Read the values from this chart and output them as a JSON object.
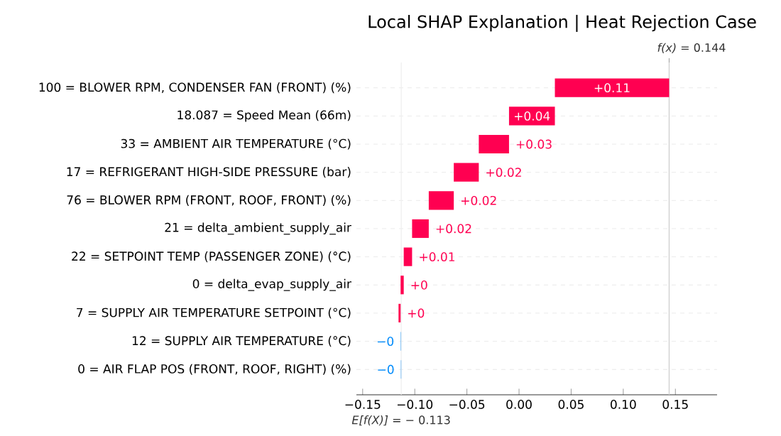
{
  "chart_data": {
    "type": "bar",
    "orientation": "horizontal",
    "title": "Local SHAP Explanation | Heat Rejection Case",
    "categories": [
      "100 = BLOWER RPM, CONDENSER FAN (FRONT) (%)",
      "18.087 = Speed Mean (66m)",
      "33 = AMBIENT AIR TEMPERATURE (°C)",
      "17 = REFRIGERANT HIGH-SIDE PRESSURE (bar)",
      "76 = BLOWER RPM (FRONT, ROOF, FRONT) (%)",
      "21 = delta_ambient_supply_air",
      "22 = SETPOINT TEMP (PASSENGER ZONE) (°C)",
      "0 = delta_evap_supply_air",
      "7 = SUPPLY AIR TEMPERATURE SETPOINT (°C)",
      "12 = SUPPLY AIR TEMPERATURE (°C)",
      "0 = AIR FLAP POS (FRONT, ROOF, RIGHT) (%)"
    ],
    "values": [
      0.1096,
      0.044,
      0.029,
      0.024,
      0.024,
      0.016,
      0.008,
      0.003,
      0.002,
      -0.0003,
      -0.0003
    ],
    "base": [
      0.0344,
      -0.0096,
      -0.0386,
      -0.0626,
      -0.0866,
      -0.1026,
      -0.1106,
      -0.1136,
      -0.1156,
      -0.1133,
      -0.113
    ],
    "value_labels": [
      "+0.11",
      "+0.04",
      "+0.03",
      "+0.02",
      "+0.02",
      "+0.02",
      "+0.01",
      "+0",
      "+0",
      "−0",
      "−0"
    ],
    "colors": [
      "#ff0051",
      "#ff0051",
      "#ff0051",
      "#ff0051",
      "#ff0051",
      "#ff0051",
      "#ff0051",
      "#ff0051",
      "#ff0051",
      "#008bfb",
      "#008bfb"
    ],
    "xlim": [
      -0.156,
      0.19
    ],
    "xticks": [
      {
        "value": -0.15,
        "label": "−0.15"
      },
      {
        "value": -0.1,
        "label": "−0.10"
      },
      {
        "value": -0.05,
        "label": "−0.05"
      },
      {
        "value": 0,
        "label": "0.00"
      },
      {
        "value": 0.05,
        "label": "0.05"
      },
      {
        "value": 0.1,
        "label": "0.10"
      },
      {
        "value": 0.15,
        "label": "0.15"
      }
    ],
    "ref_lines": [
      {
        "axis": "x",
        "value": 0.144,
        "label": "*f(x)* = 0.144",
        "color": "#cccccc"
      },
      {
        "axis": "x",
        "value": -0.113,
        "label": "*E[f(X)]* = − 0.113",
        "color": "#eeeeee"
      }
    ],
    "grid": "y"
  }
}
